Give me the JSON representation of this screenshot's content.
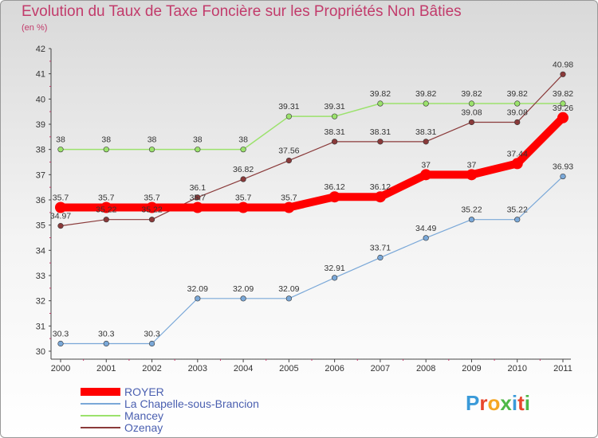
{
  "header": {
    "title": "Evolution du Taux de Taxe Foncière sur les Propriétés Non Bâties",
    "subtitle": "(en %)"
  },
  "logo": {
    "text": "Proxiti",
    "letter_colors": [
      "#3a9ad9",
      "#e8452c",
      "#f5a623",
      "#4db848",
      "#3a9ad9",
      "#e8452c",
      "#4db848"
    ]
  },
  "chart_data": {
    "type": "line",
    "title": "Evolution du Taux de Taxe Foncière sur les Propriétés Non Bâties",
    "ylabel": "(en %)",
    "xlabel": "",
    "x": [
      "2000",
      "2001",
      "2002",
      "2003",
      "2004",
      "2005",
      "2006",
      "2007",
      "2008",
      "2009",
      "2010",
      "2011"
    ],
    "ylim": [
      30,
      42
    ],
    "yticks": [
      30,
      31,
      32,
      33,
      34,
      35,
      36,
      37,
      38,
      39,
      40,
      41,
      42
    ],
    "grid": false,
    "legend_position": "bottom-left",
    "series": [
      {
        "name": "ROYER",
        "color": "#ff0000",
        "values": [
          35.7,
          35.7,
          35.7,
          35.7,
          35.7,
          35.7,
          36.12,
          36.12,
          37,
          37,
          37.44,
          39.26
        ],
        "labels": [
          "35.7",
          "35.7",
          "35.7",
          "35.7",
          "35.7",
          "35.7",
          "36.12",
          "36.12",
          "37",
          "37",
          "37.44",
          "39.26"
        ]
      },
      {
        "name": "La Chapelle-sous-Brancion",
        "color": "#7aa8d8",
        "values": [
          30.3,
          30.3,
          30.3,
          32.09,
          32.09,
          32.09,
          32.91,
          33.71,
          34.49,
          35.22,
          35.22,
          36.93
        ],
        "labels": [
          "30.3",
          "30.3",
          "30.3",
          "32.09",
          "32.09",
          "32.09",
          "32.91",
          "33.71",
          "34.49",
          "35.22",
          "35.22",
          "36.93"
        ]
      },
      {
        "name": "Mancey",
        "color": "#9be26c",
        "values": [
          38,
          38,
          38,
          38,
          38,
          39.31,
          39.31,
          39.82,
          39.82,
          39.82,
          39.82,
          39.82
        ],
        "labels": [
          "38",
          "38",
          "38",
          "38",
          "38",
          "39.31",
          "39.31",
          "39.82",
          "39.82",
          "39.82",
          "39.82",
          "39.82"
        ]
      },
      {
        "name": "Ozenay",
        "color": "#8a3a3a",
        "values": [
          34.97,
          35.22,
          35.22,
          36.1,
          36.82,
          37.56,
          38.31,
          38.31,
          38.31,
          39.08,
          39.08,
          40.98
        ],
        "labels": [
          "34.97",
          "35.22",
          "35.22",
          "36.1",
          "36.82",
          "37.56",
          "38.31",
          "38.31",
          "38.31",
          "39.08",
          "39.08",
          "40.98"
        ]
      }
    ]
  }
}
